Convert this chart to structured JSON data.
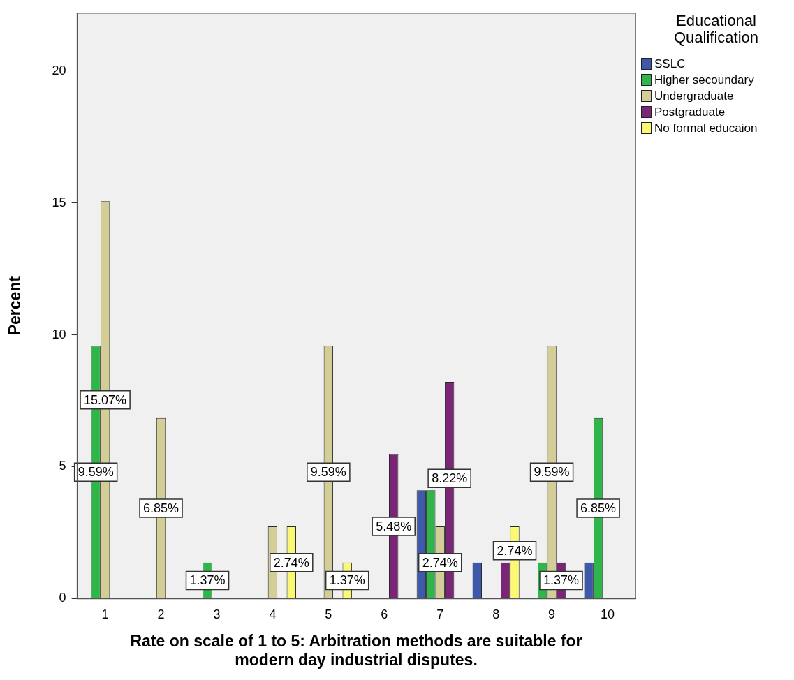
{
  "chart_data": {
    "type": "bar",
    "xlabel": "Rate on scale of 1 to 5: Arbitration methods are suitable for modern day industrial disputes.",
    "ylabel": "Percent",
    "legend_title": "Educational Qualification",
    "categories": [
      "1",
      "2",
      "3",
      "4",
      "5",
      "6",
      "7",
      "8",
      "9",
      "10"
    ],
    "series": [
      {
        "name": "SSLC",
        "color": "#3e58ac",
        "values": [
          null,
          null,
          null,
          null,
          null,
          null,
          4.11,
          1.37,
          null,
          1.37
        ],
        "value_labels": [
          null,
          null,
          null,
          null,
          null,
          null,
          null,
          null,
          null,
          null
        ]
      },
      {
        "name": "Higher secoundary",
        "color": "#2fb54a",
        "values": [
          9.59,
          null,
          1.37,
          null,
          null,
          null,
          4.11,
          null,
          1.37,
          6.85
        ],
        "value_labels": [
          "9.59%",
          null,
          "1.37%",
          null,
          null,
          null,
          null,
          null,
          null,
          "6.85%"
        ]
      },
      {
        "name": "Undergraduate",
        "color": "#d3ce97",
        "values": [
          15.07,
          6.85,
          null,
          2.74,
          9.59,
          null,
          2.74,
          null,
          9.59,
          null
        ],
        "value_labels": [
          "15.07%",
          "6.85%",
          null,
          null,
          "9.59%",
          null,
          "2.74%",
          null,
          "9.59%",
          null
        ]
      },
      {
        "name": "Postgraduate",
        "color": "#7b2576",
        "values": [
          null,
          null,
          null,
          null,
          null,
          5.48,
          8.22,
          1.37,
          1.37,
          null
        ],
        "value_labels": [
          null,
          null,
          null,
          null,
          null,
          "5.48%",
          "8.22%",
          null,
          "1.37%",
          null
        ]
      },
      {
        "name": "No formal educaion",
        "color": "#fbf873",
        "values": [
          null,
          null,
          null,
          2.74,
          1.37,
          null,
          null,
          2.74,
          null,
          null
        ],
        "value_labels": [
          null,
          null,
          null,
          "2.74%",
          "1.37%",
          null,
          null,
          "2.74%",
          null,
          null
        ]
      }
    ],
    "ylim": [
      0,
      22.2
    ],
    "yticks": [
      0,
      5,
      10,
      15,
      20
    ],
    "grid": false,
    "legend": "top right"
  }
}
